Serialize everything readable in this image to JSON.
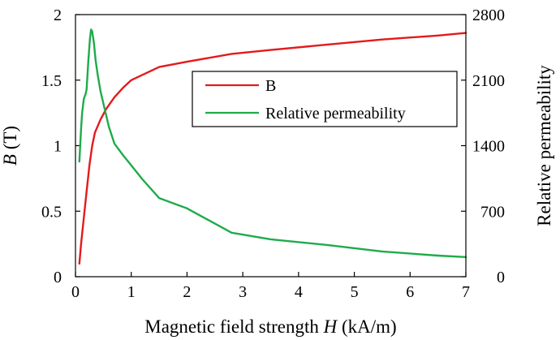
{
  "chart_data": {
    "type": "line",
    "title": "",
    "xlabel": {
      "pre": "Magnetic field strength ",
      "italic": "H",
      "post": " (kA/m)"
    },
    "ylabel_left": {
      "italic": "B",
      "post": " (T)"
    },
    "ylabel_right": "Relative permeability",
    "xlim": [
      0,
      7
    ],
    "ylim_left": [
      0,
      2
    ],
    "ylim_right": [
      0,
      2800
    ],
    "x_ticks": [
      "0",
      "1",
      "2",
      "3",
      "4",
      "5",
      "6",
      "7"
    ],
    "y_left_ticks": [
      "0",
      "0.5",
      "1",
      "1.5",
      "2"
    ],
    "y_right_ticks": [
      "0",
      "700",
      "1400",
      "2100",
      "2800"
    ],
    "grid": false,
    "legend_position": "upper-middle",
    "series": [
      {
        "name": "B",
        "axis": "left",
        "color": "#e41a1c",
        "x": [
          0.07,
          0.1,
          0.15,
          0.2,
          0.25,
          0.3,
          0.35,
          0.45,
          0.55,
          0.7,
          0.85,
          1.0,
          1.5,
          2.0,
          2.8,
          3.5,
          4.5,
          5.5,
          6.5,
          7.0
        ],
        "y": [
          0.1,
          0.25,
          0.45,
          0.65,
          0.85,
          1.0,
          1.1,
          1.2,
          1.28,
          1.37,
          1.44,
          1.5,
          1.6,
          1.64,
          1.7,
          1.73,
          1.77,
          1.81,
          1.84,
          1.86
        ]
      },
      {
        "name": "Relative permeability",
        "axis": "right",
        "color": "#1fab4b",
        "x": [
          0.07,
          0.1,
          0.12,
          0.15,
          0.18,
          0.2,
          0.23,
          0.26,
          0.28,
          0.3,
          0.33,
          0.36,
          0.4,
          0.45,
          0.5,
          0.6,
          0.7,
          0.85,
          1.0,
          1.2,
          1.5,
          2.0,
          2.8,
          3.5,
          4.5,
          5.5,
          6.5,
          7.0
        ],
        "y": [
          1230,
          1580,
          1750,
          1900,
          1950,
          2000,
          2300,
          2550,
          2640,
          2620,
          2500,
          2320,
          2150,
          1980,
          1850,
          1600,
          1420,
          1300,
          1190,
          1040,
          840,
          730,
          470,
          400,
          340,
          270,
          225,
          210
        ]
      }
    ]
  }
}
